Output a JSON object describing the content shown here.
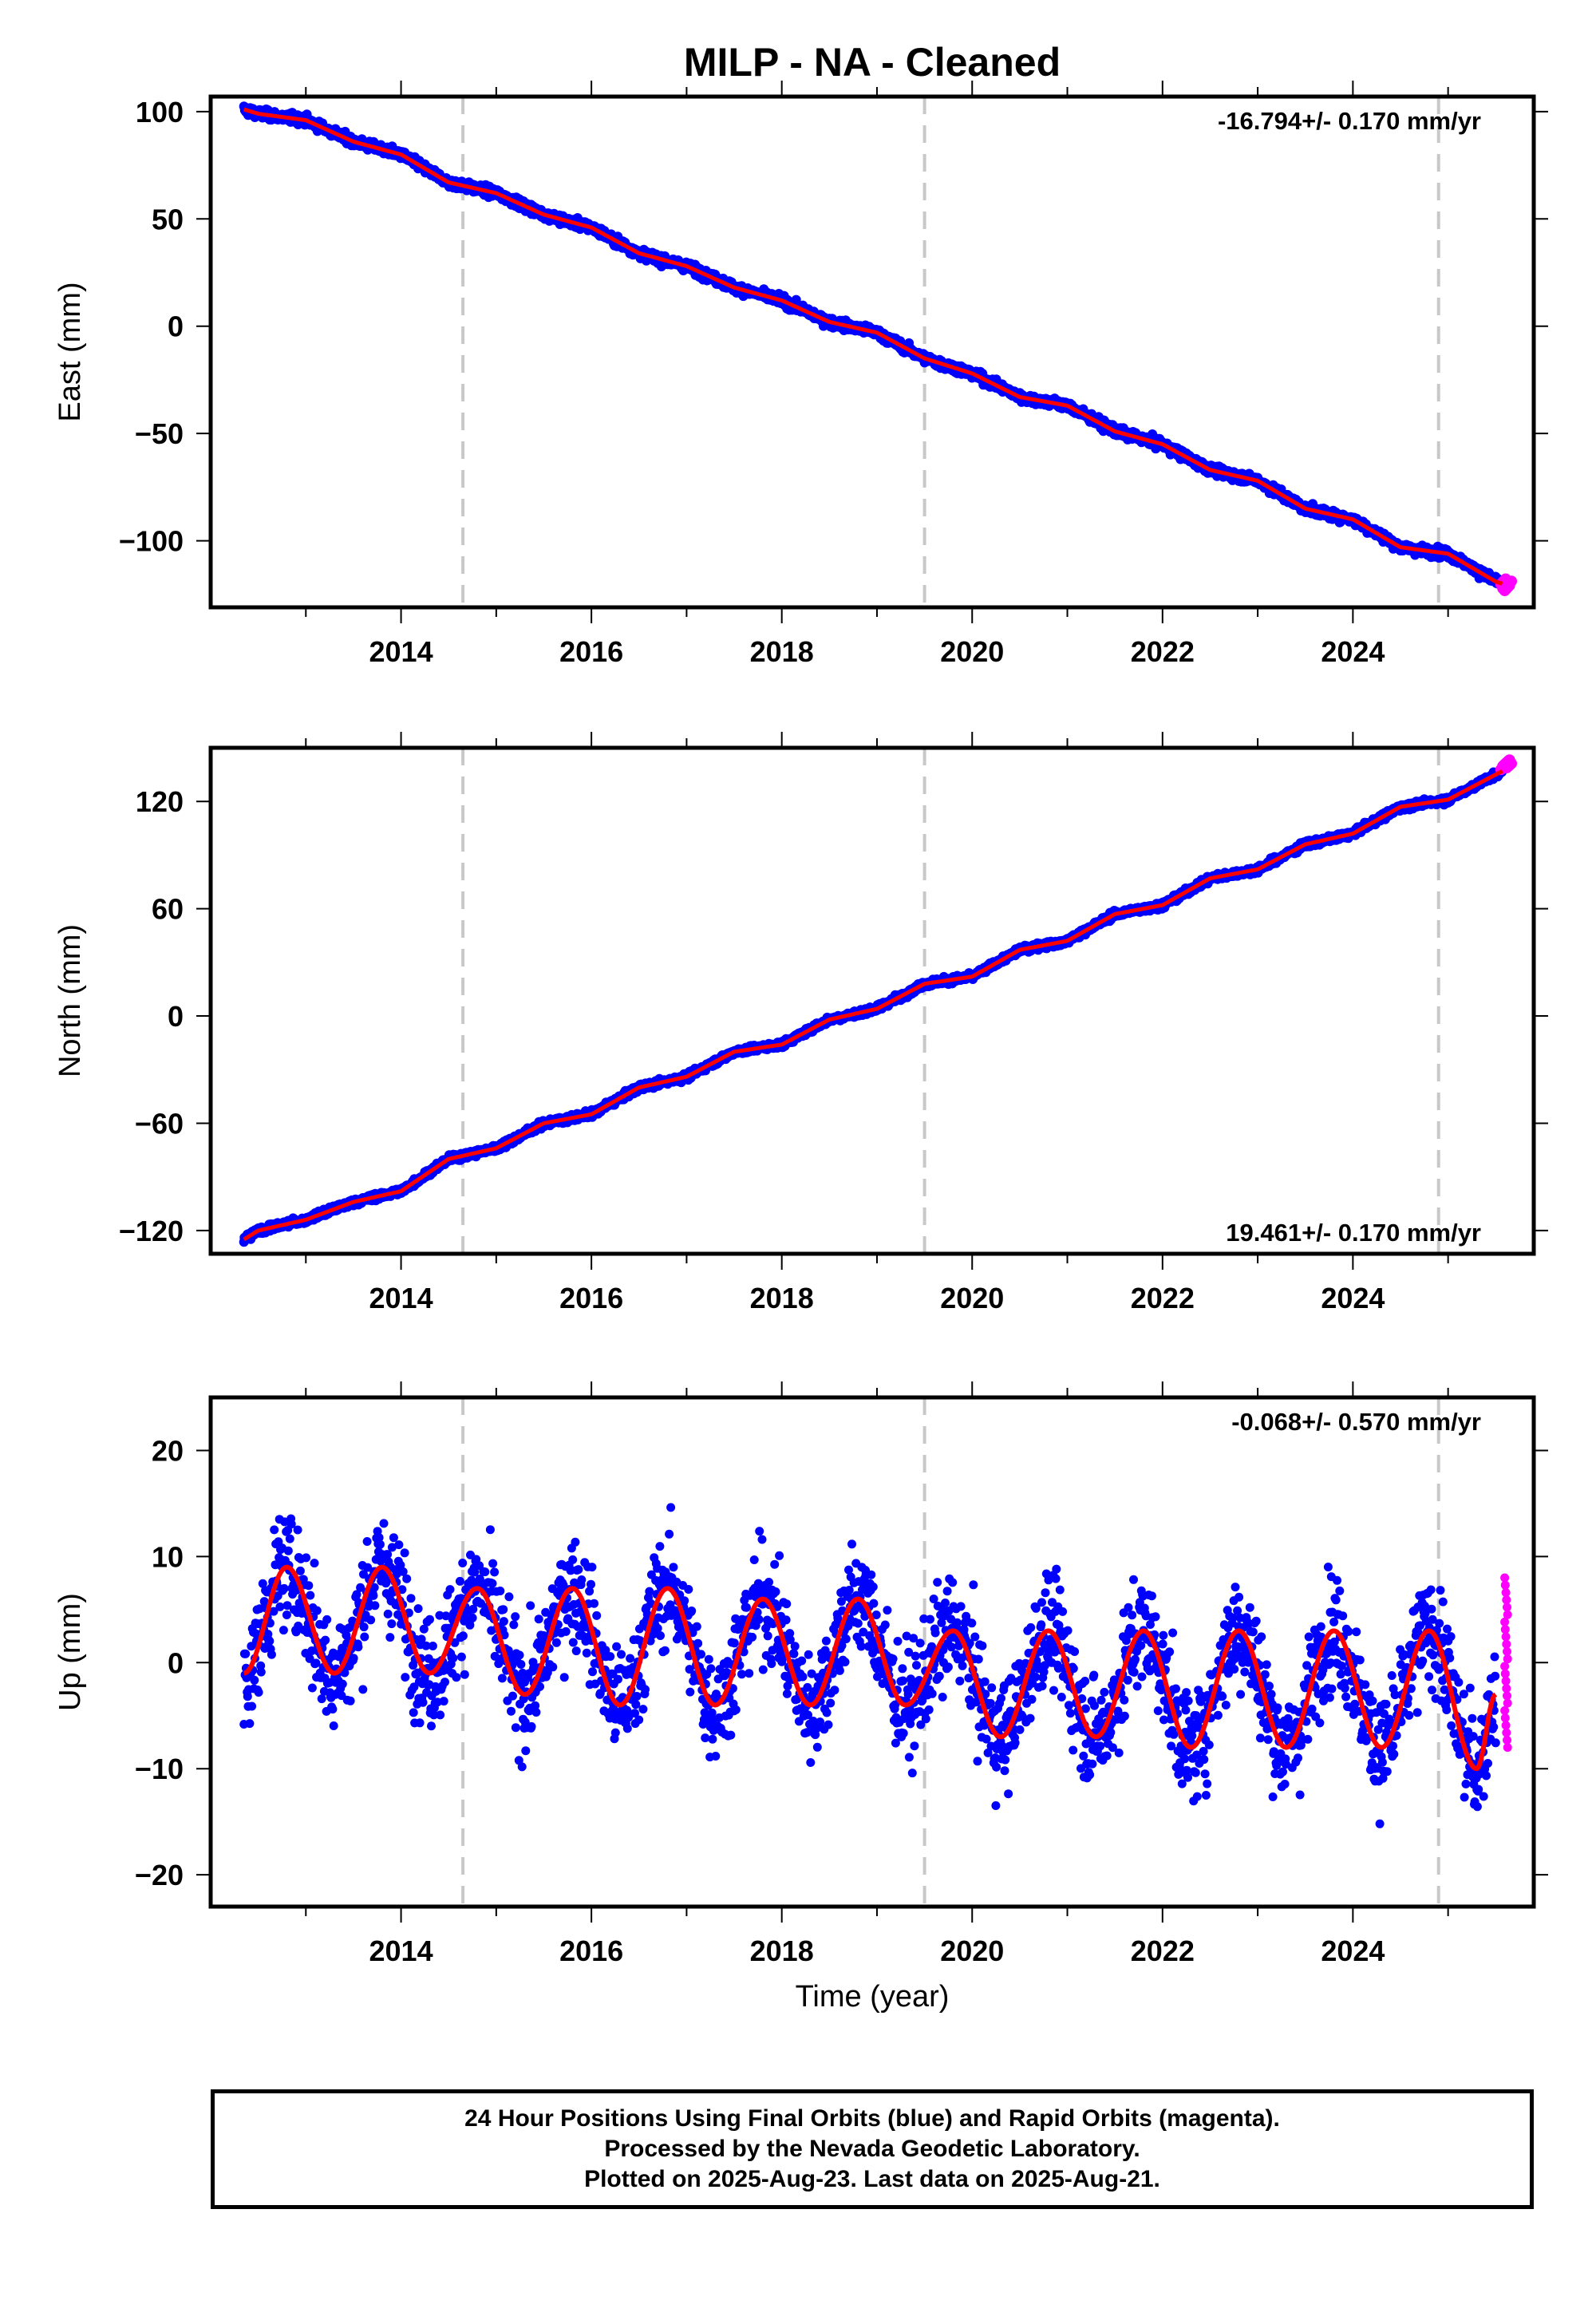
{
  "title": "MILP  - NA - Cleaned",
  "xlabel": "Time (year)",
  "colors": {
    "final": "#0000ff",
    "rapid": "#ff00ff",
    "model": "#ff0000",
    "break": "#c8c8c8",
    "axis": "#000000"
  },
  "footer": {
    "line1": "24 Hour Positions Using Final Orbits (blue) and Rapid Orbits (magenta).",
    "line2": "Processed by the Nevada Geodetic Laboratory.",
    "line3": "Plotted on 2025-Aug-23. Last data on 2025-Aug-21."
  },
  "chart_data": [
    {
      "type": "scatter",
      "component": "east",
      "ylabel": "East (mm)",
      "rate": "-16.794+/- 0.170 mm/yr",
      "xlim": [
        2012.0,
        2025.9
      ],
      "ylim": [
        -131,
        107
      ],
      "xticks": [
        2014,
        2016,
        2018,
        2020,
        2022,
        2024
      ],
      "yticks": [
        100,
        50,
        0,
        -50,
        -100
      ],
      "ytick_labels": [
        "100",
        "50",
        "0",
        "−50",
        "−100"
      ],
      "breaks": [
        2014.65,
        2019.5,
        2024.9
      ],
      "series": [
        {
          "kind": "final",
          "x": [
            2012.35,
            2012.5,
            2013.0,
            2013.5,
            2014.0,
            2014.5,
            2015.0,
            2015.5,
            2016.0,
            2016.5,
            2017.0,
            2017.5,
            2018.0,
            2018.5,
            2019.0,
            2019.5,
            2020.0,
            2020.5,
            2021.0,
            2021.5,
            2022.0,
            2022.5,
            2023.0,
            2023.5,
            2024.0,
            2024.5,
            2025.0,
            2025.5,
            2025.57
          ],
          "values": [
            101,
            99,
            96,
            86,
            80,
            67,
            62,
            52,
            46,
            34,
            28,
            18,
            12,
            2,
            -3,
            -15,
            -22,
            -33,
            -37,
            -49,
            -55,
            -67,
            -72,
            -85,
            -90,
            -103,
            -106,
            -119,
            -120
          ]
        },
        {
          "kind": "rapid",
          "x": [
            2025.58,
            2025.6,
            2025.62,
            2025.64
          ],
          "values": [
            -119,
            -121,
            -122,
            -120
          ]
        }
      ]
    },
    {
      "type": "scatter",
      "component": "north",
      "ylabel": "North (mm)",
      "rate": "19.461+/- 0.170 mm/yr",
      "xlim": [
        2012.0,
        2025.9
      ],
      "ylim": [
        -133,
        150
      ],
      "xticks": [
        2014,
        2016,
        2018,
        2020,
        2022,
        2024
      ],
      "yticks": [
        120,
        60,
        0,
        -60,
        -120
      ],
      "ytick_labels": [
        "120",
        "60",
        "0",
        "−60",
        "−120"
      ],
      "breaks": [
        2014.65,
        2019.5,
        2024.9
      ],
      "series": [
        {
          "kind": "final",
          "x": [
            2012.35,
            2012.5,
            2013.0,
            2013.5,
            2014.0,
            2014.5,
            2015.0,
            2015.5,
            2016.0,
            2016.5,
            2017.0,
            2017.5,
            2018.0,
            2018.5,
            2019.0,
            2019.5,
            2020.0,
            2020.5,
            2021.0,
            2021.5,
            2022.0,
            2022.5,
            2023.0,
            2023.5,
            2024.0,
            2024.5,
            2025.0,
            2025.5,
            2025.57
          ],
          "values": [
            -125,
            -120,
            -114,
            -104,
            -98,
            -80,
            -74,
            -60,
            -55,
            -40,
            -34,
            -20,
            -16,
            -2,
            4,
            18,
            22,
            37,
            42,
            57,
            62,
            77,
            82,
            96,
            102,
            117,
            121,
            135,
            137
          ]
        },
        {
          "kind": "rapid",
          "x": [
            2025.58,
            2025.6,
            2025.62,
            2025.64
          ],
          "values": [
            139,
            141,
            142,
            140
          ]
        }
      ]
    },
    {
      "type": "scatter",
      "component": "up",
      "ylabel": "Up (mm)",
      "rate": "-0.068+/- 0.570 mm/yr",
      "xlim": [
        2012.0,
        2025.9
      ],
      "ylim": [
        -23,
        25
      ],
      "xticks": [
        2014,
        2016,
        2018,
        2020,
        2022,
        2024
      ],
      "yticks": [
        20,
        10,
        0,
        -10,
        -20
      ],
      "ytick_labels": [
        "20",
        "10",
        "0",
        "−10",
        "−20"
      ],
      "breaks": [
        2014.65,
        2019.5,
        2024.9
      ],
      "series": [
        {
          "kind": "final",
          "x": [
            2012.35,
            2012.8,
            2013.3,
            2013.8,
            2014.3,
            2014.8,
            2015.3,
            2015.8,
            2016.3,
            2016.8,
            2017.3,
            2017.8,
            2018.3,
            2018.8,
            2019.3,
            2019.8,
            2020.3,
            2020.8,
            2021.3,
            2021.8,
            2022.3,
            2022.8,
            2023.3,
            2023.8,
            2024.3,
            2024.8,
            2025.3,
            2025.5
          ],
          "values": [
            -1,
            9,
            -1,
            9,
            -1,
            7,
            -3,
            7,
            -4,
            7,
            -4,
            6,
            -4,
            6,
            -4,
            3,
            -7,
            3,
            -7,
            3,
            -8,
            3,
            -8,
            3,
            -8,
            3,
            -10,
            -3
          ]
        },
        {
          "kind": "rapid",
          "x": [
            2025.58,
            2025.59,
            2025.6,
            2025.61,
            2025.62,
            2025.63,
            2025.64
          ],
          "values": [
            8,
            6,
            2,
            0,
            -3,
            -6,
            -8
          ]
        }
      ]
    }
  ]
}
